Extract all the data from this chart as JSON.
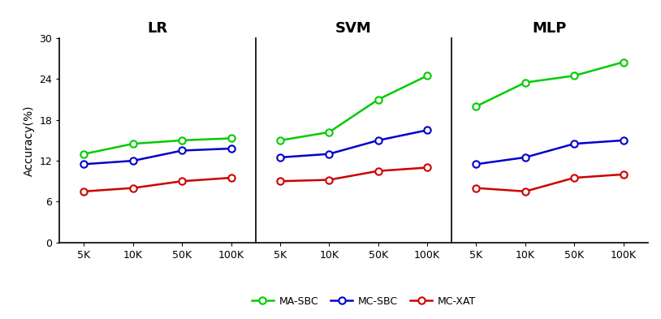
{
  "x_labels": [
    "5K",
    "10K",
    "50K",
    "100K"
  ],
  "x_values": [
    0,
    1,
    2,
    3
  ],
  "subplots": [
    {
      "title": "LR",
      "MA_SBC": [
        13.0,
        14.5,
        15.0,
        15.3
      ],
      "MC_SBC": [
        11.5,
        12.0,
        13.5,
        13.8
      ],
      "MC_XAT": [
        7.5,
        8.0,
        9.0,
        9.5
      ]
    },
    {
      "title": "SVM",
      "MA_SBC": [
        15.0,
        16.2,
        21.0,
        24.5
      ],
      "MC_SBC": [
        12.5,
        13.0,
        15.0,
        16.5
      ],
      "MC_XAT": [
        9.0,
        9.2,
        10.5,
        11.0
      ]
    },
    {
      "title": "MLP",
      "MA_SBC": [
        20.0,
        23.5,
        24.5,
        26.5
      ],
      "MC_SBC": [
        11.5,
        12.5,
        14.5,
        15.0
      ],
      "MC_XAT": [
        8.0,
        7.5,
        9.5,
        10.0
      ]
    }
  ],
  "colors": {
    "MA_SBC": "#00CC00",
    "MC_SBC": "#0000CC",
    "MC_XAT": "#CC0000"
  },
  "ylim": [
    0,
    30
  ],
  "yticks": [
    0,
    6,
    12,
    18,
    24,
    30
  ],
  "ylabel": "Accuracy(%)",
  "marker": "o",
  "markersize": 6,
  "linewidth": 1.8,
  "title_fontsize": 13,
  "label_fontsize": 9,
  "ylabel_fontsize": 10,
  "legend_fontsize": 9
}
